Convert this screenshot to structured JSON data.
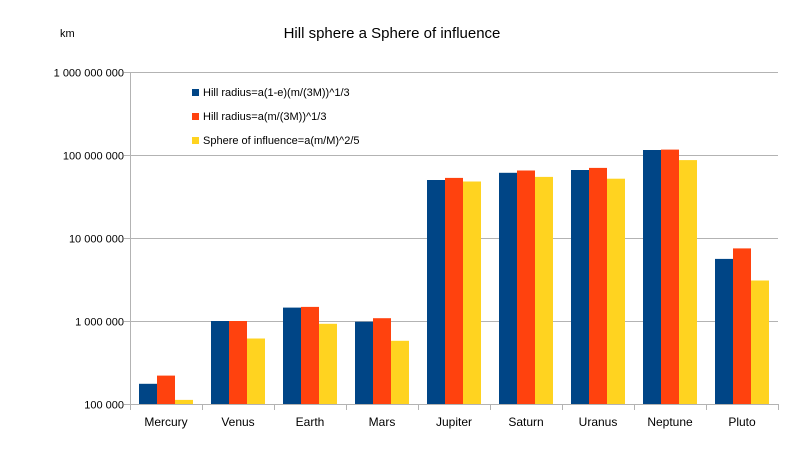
{
  "chart_data": {
    "type": "bar",
    "title": "Hill sphere a Sphere of influence",
    "ylabel": "km",
    "yscale": "log",
    "ylim": [
      100000,
      1000000000
    ],
    "yticks": [
      100000,
      1000000,
      10000000,
      100000000,
      1000000000
    ],
    "ytick_labels": [
      "100 000",
      "1 000 000",
      "10 000 000",
      "100 000 000",
      "1 000 000 000"
    ],
    "grid": true,
    "legend_position": "top-left",
    "categories": [
      "Mercury",
      "Venus",
      "Earth",
      "Mars",
      "Jupiter",
      "Saturn",
      "Uranus",
      "Neptune",
      "Pluto"
    ],
    "series": [
      {
        "name": "Hill radius=a(1-e)(m/(3M))^1/3",
        "color": "#004586",
        "values": [
          175000,
          1000000,
          1450000,
          980000,
          50000000,
          61000000,
          66000000,
          115000000,
          5600000
        ]
      },
      {
        "name": "Hill radius=a(m/(3M))^1/3",
        "color": "#ff420e",
        "values": [
          220000,
          1000000,
          1480000,
          1080000,
          53000000,
          65000000,
          70000000,
          116000000,
          7500000
        ]
      },
      {
        "name": "Sphere of influence=a(m/M)^2/5",
        "color": "#ffd320",
        "values": [
          112000,
          615000,
          925000,
          578000,
          48000000,
          54500000,
          51800000,
          86800000,
          3080000
        ]
      }
    ]
  }
}
